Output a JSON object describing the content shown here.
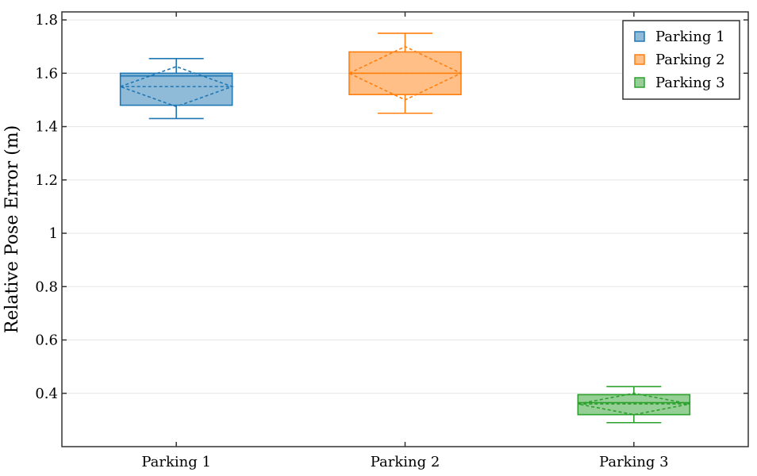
{
  "chart_data": {
    "type": "box",
    "title": "",
    "xlabel": "",
    "ylabel": "Relative Pose Error (m)",
    "ylim": [
      0.2,
      1.83
    ],
    "yticks": [
      0.4,
      0.6,
      0.8,
      1.0,
      1.2,
      1.4,
      1.6,
      1.8
    ],
    "ytick_labels": [
      "0.4",
      "0.6",
      "0.8",
      "1",
      "1.2",
      "1.4",
      "1.6",
      "1.8"
    ],
    "categories": [
      "Parking 1",
      "Parking 2",
      "Parking 3"
    ],
    "grid": "horizontal",
    "legend_position": "top-right",
    "series": [
      {
        "name": "Parking 1",
        "color": "#1f77b4",
        "fill": "#8fbbd9",
        "whisker_low": 1.43,
        "q1": 1.48,
        "median": 1.59,
        "q3": 1.6,
        "whisker_high": 1.655,
        "mean": 1.55,
        "mean_diamond_top": 1.625,
        "mean_diamond_bottom": 1.475
      },
      {
        "name": "Parking 2",
        "color": "#ff7f0e",
        "fill": "#ffbf86",
        "whisker_low": 1.45,
        "q1": 1.52,
        "median": 1.6,
        "q3": 1.68,
        "whisker_high": 1.75,
        "mean": 1.6,
        "mean_diamond_top": 1.7,
        "mean_diamond_bottom": 1.5
      },
      {
        "name": "Parking 3",
        "color": "#2ca02c",
        "fill": "#96cf96",
        "whisker_low": 0.29,
        "q1": 0.32,
        "median": 0.365,
        "q3": 0.395,
        "whisker_high": 0.425,
        "mean": 0.36,
        "mean_diamond_top": 0.4,
        "mean_diamond_bottom": 0.32
      }
    ]
  }
}
